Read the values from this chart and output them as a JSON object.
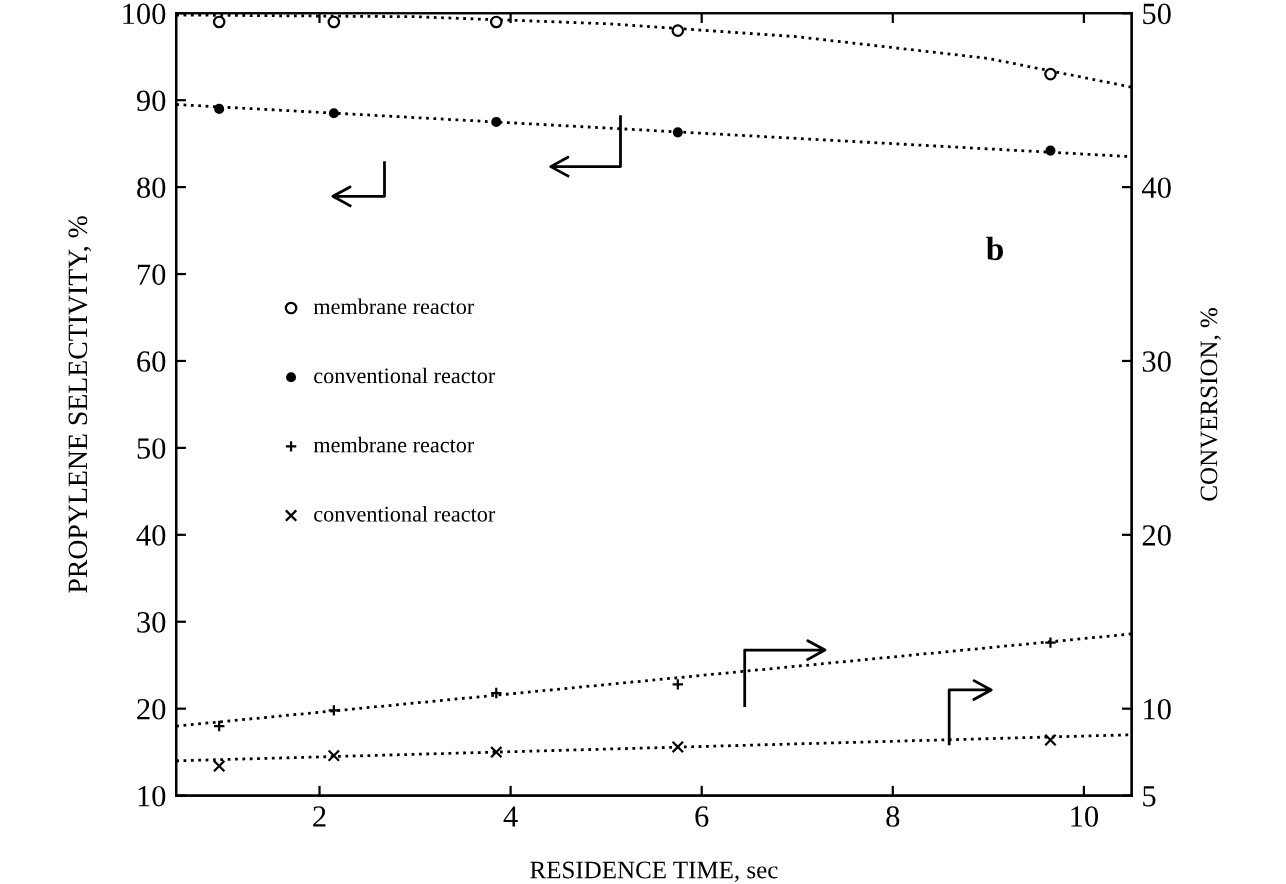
{
  "chart_data": {
    "type": "scatter",
    "xlabel": "RESIDENCE TIME, sec",
    "ylabel": "PROPYLENE SELECTIVITY, %",
    "y2label": "CONVERSION, %",
    "xlim": [
      0.5,
      10.5
    ],
    "xticks": [
      2,
      4,
      6,
      8,
      10
    ],
    "ylim": [
      10,
      100
    ],
    "yticks": [
      10,
      20,
      30,
      40,
      50,
      60,
      70,
      80,
      90,
      100
    ],
    "y2lim": [
      5,
      50
    ],
    "y2ticks": [
      5,
      10,
      20,
      30,
      40,
      50
    ],
    "grid": false,
    "legend": "center left",
    "annotations": [
      "b"
    ],
    "series": [
      {
        "name": "membrane reactor",
        "marker": "circle",
        "color": "#000000",
        "x": [
          0.95,
          2.15,
          3.85,
          5.75,
          9.65
        ],
        "values": [
          99,
          99,
          99,
          98,
          93
        ]
      },
      {
        "name": "conventional reactor",
        "marker": "dot",
        "color": "#000000",
        "x": [
          0.95,
          2.15,
          3.85,
          5.75,
          9.65
        ],
        "values": [
          89,
          88.5,
          87.5,
          86.3,
          84.2
        ]
      },
      {
        "name": "membrane reactor",
        "marker": "cross",
        "axis": "y2",
        "color": "#000000",
        "x": [
          0.95,
          2.15,
          3.85,
          5.75,
          9.65
        ],
        "values": [
          9.0,
          9.9,
          10.9,
          11.4,
          13.8
        ]
      },
      {
        "name": "conventional reactor",
        "marker": "x",
        "axis": "y2",
        "color": "#000000",
        "x": [
          0.95,
          2.15,
          3.85,
          5.75,
          9.65
        ],
        "values": [
          6.7,
          7.3,
          7.5,
          7.8,
          8.2
        ]
      },
      {
        "type": "line",
        "line_style": "dotted",
        "color": "#000000",
        "x": [
          0.5,
          3,
          5,
          7,
          9,
          10.5
        ],
        "values": [
          99.8,
          99.6,
          98.8,
          97.3,
          94.8,
          91.5
        ]
      },
      {
        "type": "line",
        "line_style": "dotted",
        "color": "#000000",
        "x": [
          0.5,
          10.5
        ],
        "values": [
          89.5,
          83.5
        ]
      },
      {
        "type": "line",
        "line_style": "dotted",
        "axis": "y2",
        "color": "#000000",
        "x": [
          0.5,
          10.5
        ],
        "values": [
          9.0,
          14.3
        ]
      },
      {
        "type": "line",
        "line_style": "dotted",
        "axis": "y2",
        "color": "#000000",
        "x": [
          0.5,
          10.5
        ],
        "values": [
          7.0,
          8.5
        ]
      }
    ]
  }
}
